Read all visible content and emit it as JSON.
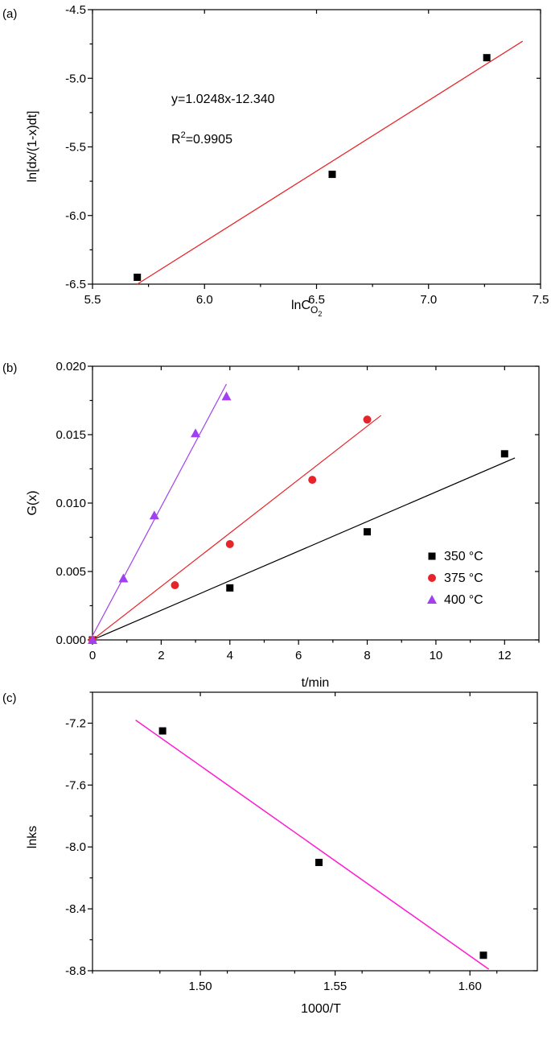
{
  "chart_data": [
    {
      "panel_label": "(a)",
      "type": "scatter",
      "title": "",
      "xlabel_main": "lnC",
      "xlabel_sub": "O",
      "xlabel_subsub": "2",
      "ylabel": "ln[dx/(1-x)dt]",
      "xlim": [
        5.5,
        7.5
      ],
      "ylim": [
        -6.5,
        -4.5
      ],
      "xticks": [
        5.5,
        6.0,
        6.5,
        7.0,
        7.5
      ],
      "xtick_labels": [
        "5.5",
        "6.0",
        "6.5",
        "7.0",
        "7.5"
      ],
      "yticks": [
        -6.5,
        -6.0,
        -5.5,
        -5.0,
        -4.5
      ],
      "ytick_labels": [
        "-6.5",
        "-6.0",
        "-5.5",
        "-5.0",
        "-4.5"
      ],
      "points": {
        "x": [
          5.7,
          6.57,
          7.26
        ],
        "y": [
          -6.45,
          -5.7,
          -4.85
        ]
      },
      "fit": {
        "x": [
          5.7,
          7.42
        ],
        "y": [
          -6.5,
          -4.73
        ],
        "color": "#e8242b"
      },
      "equation": "y=1.0248x-12.340",
      "r2_prefix": "R",
      "r2_sup": "2",
      "r2_value": "=0.9905"
    },
    {
      "panel_label": "(b)",
      "type": "scatter",
      "title": "",
      "xlabel": "t/min",
      "ylabel": "G(x)",
      "xlim": [
        0,
        13
      ],
      "ylim": [
        0,
        0.02
      ],
      "xticks": [
        0,
        2,
        4,
        6,
        8,
        10,
        12
      ],
      "xtick_labels": [
        "0",
        "2",
        "4",
        "6",
        "8",
        "10",
        "12"
      ],
      "yticks": [
        0,
        0.005,
        0.01,
        0.015,
        0.02
      ],
      "ytick_labels": [
        "0.000",
        "0.005",
        "0.010",
        "0.015",
        "0.020"
      ],
      "series": [
        {
          "name": "350",
          "unit": "°C",
          "marker": "square",
          "color": "#000000",
          "x": [
            0,
            4,
            8,
            12
          ],
          "y": [
            0,
            0.0038,
            0.0079,
            0.0136
          ],
          "fit": {
            "x": [
              0,
              12.3
            ],
            "y": [
              0,
              0.0133
            ]
          }
        },
        {
          "name": "375",
          "unit": "°C",
          "marker": "circle",
          "color": "#e8242b",
          "x": [
            0,
            2.4,
            4,
            6.4,
            8
          ],
          "y": [
            0,
            0.004,
            0.007,
            0.0117,
            0.0161
          ],
          "fit": {
            "x": [
              0,
              8.4
            ],
            "y": [
              0,
              0.0164
            ]
          }
        },
        {
          "name": "400",
          "unit": "°C",
          "marker": "triangle",
          "color": "#a040f0",
          "x": [
            0,
            0.9,
            1.8,
            3,
            3.9
          ],
          "y": [
            0,
            0.0045,
            0.0091,
            0.0151,
            0.0178
          ],
          "fit": {
            "x": [
              0,
              3.9
            ],
            "y": [
              0.0003,
              0.0187
            ]
          }
        }
      ],
      "legend_position": "center-right"
    },
    {
      "panel_label": "(c)",
      "type": "scatter",
      "title": "",
      "xlabel": "1000/T",
      "ylabel": "lnks",
      "xlim": [
        1.46,
        1.625
      ],
      "ylim": [
        -8.8,
        -7.0
      ],
      "xticks": [
        1.5,
        1.55,
        1.6
      ],
      "xtick_labels": [
        "1.50",
        "1.55",
        "1.60"
      ],
      "yticks": [
        -8.8,
        -8.4,
        -8.0,
        -7.6,
        -7.2
      ],
      "ytick_labels": [
        "-8.8",
        "-8.4",
        "-8.0",
        "-7.6",
        "-7.2"
      ],
      "points": {
        "x": [
          1.486,
          1.544,
          1.605
        ],
        "y": [
          -7.25,
          -8.1,
          -8.7
        ]
      },
      "fit": {
        "x": [
          1.476,
          1.607
        ],
        "y": [
          -7.18,
          -8.79
        ],
        "color": "#ff1bd1"
      }
    }
  ]
}
